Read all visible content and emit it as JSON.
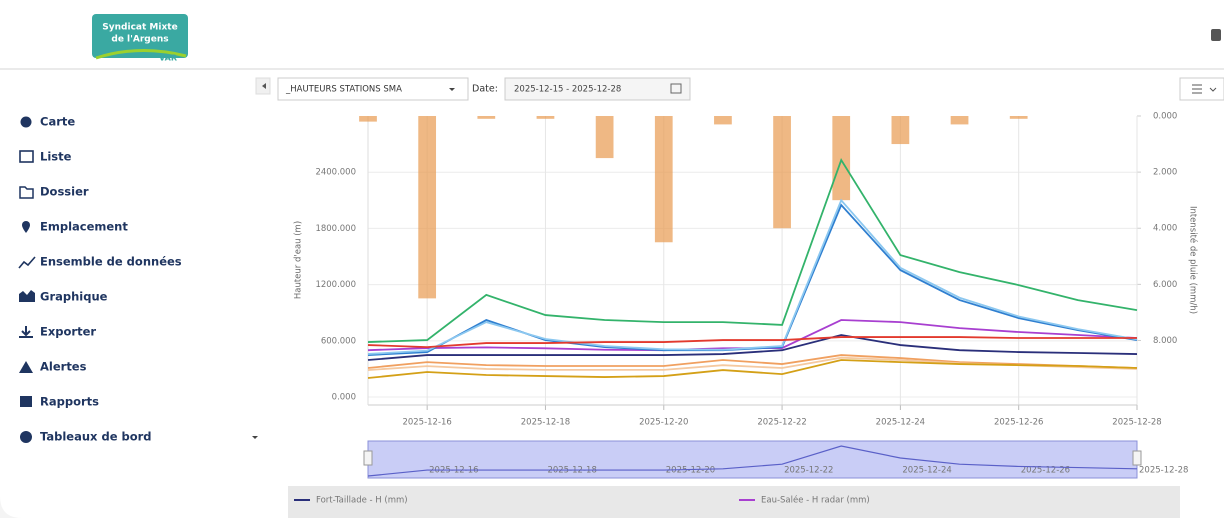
{
  "logo": {
    "line1": "Syndicat Mixte",
    "line2": "de l'Argens",
    "region": "VAR"
  },
  "sidebar": {
    "items": [
      "Carte",
      "Liste",
      "Dossier",
      "Emplacement",
      "Ensemble de données",
      "Graphique",
      "Exporter",
      "Alertes",
      "Rapports",
      "Tableaux de bord"
    ]
  },
  "toolbar": {
    "dataset": "_HAUTEURS STATIONS SMA",
    "date_label": "Date:",
    "date_range": "2025-12-15 - 2025-12-28"
  },
  "chart_data": {
    "type": "line",
    "y_label": "Hauteur d'eau (m)",
    "y2_label": "Intensité de pluie (mm/h)",
    "x": [
      "2025-12-15",
      "2025-12-16",
      "2025-12-17",
      "2025-12-18",
      "2025-12-19",
      "2025-12-20",
      "2025-12-21",
      "2025-12-22",
      "2025-12-23",
      "2025-12-24",
      "2025-12-25",
      "2025-12-26",
      "2025-12-27",
      "2025-12-28"
    ],
    "xlim": [
      "2025-12-15",
      "2025-12-28"
    ],
    "xticks": [
      "2025-12-16",
      "2025-12-18",
      "2025-12-20",
      "2025-12-22",
      "2025-12-24",
      "2025-12-26",
      "2025-12-28"
    ],
    "ylim": [
      -85,
      3000
    ],
    "yticks": [
      {
        "value": 0,
        "label": "0.000"
      },
      {
        "value": 600,
        "label": "600.000"
      },
      {
        "value": 1200,
        "label": "1200.000"
      },
      {
        "value": 1800,
        "label": "1800.000"
      },
      {
        "value": 2400,
        "label": "2400.000"
      }
    ],
    "y2lim": [
      0,
      10.3
    ],
    "y2_inverted": true,
    "y2ticks": [
      {
        "value": 0,
        "label": "0.000"
      },
      {
        "value": 2,
        "label": "2.000"
      },
      {
        "value": 4,
        "label": "4.000"
      },
      {
        "value": 6,
        "label": "6.000"
      },
      {
        "value": 8,
        "label": "8.000"
      }
    ],
    "grid": true,
    "series": [
      {
        "name": "Fort-Taillade - H (mm)",
        "color": "#2a2f7a",
        "values": [
          395,
          448,
          448,
          448,
          448,
          448,
          459,
          500,
          662,
          555,
          500,
          480,
          470,
          459
        ]
      },
      {
        "name": "Eau-Salée - H radar (mm)",
        "color": "#a83fd0",
        "values": [
          500,
          523,
          530,
          520,
          505,
          500,
          520,
          523,
          822,
          800,
          736,
          694,
          662,
          630
        ]
      },
      {
        "color": "#33b36b",
        "values": [
          587,
          608,
          1090,
          875,
          822,
          800,
          800,
          770,
          2530,
          1515,
          1334,
          1195,
          1035,
          928
        ]
      },
      {
        "color": "#2f7fd0",
        "values": [
          448,
          480,
          822,
          608,
          533,
          500,
          500,
          533,
          2050,
          1355,
          1035,
          843,
          715,
          608
        ]
      },
      {
        "color": "#8cc8f0",
        "values": [
          460,
          495,
          800,
          620,
          545,
          510,
          505,
          545,
          2100,
          1380,
          1060,
          860,
          725,
          615
        ]
      },
      {
        "color": "#e23a2e",
        "values": [
          555,
          533,
          576,
          576,
          587,
          587,
          608,
          608,
          640,
          640,
          640,
          630,
          630,
          630
        ]
      },
      {
        "color": "#f0a060",
        "values": [
          310,
          373,
          341,
          331,
          331,
          331,
          395,
          352,
          448,
          416,
          373,
          352,
          331,
          310
        ]
      },
      {
        "color": "#f5c9a0",
        "values": [
          288,
          330,
          300,
          290,
          290,
          290,
          340,
          310,
          420,
          395,
          360,
          340,
          320,
          300
        ]
      },
      {
        "color": "#d4a017",
        "values": [
          203,
          267,
          235,
          224,
          213,
          224,
          288,
          245,
          395,
          373,
          352,
          341,
          331,
          310
        ]
      },
      {
        "type": "bar",
        "axis": "y2",
        "color": "#e89a50",
        "values": [
          0.2,
          6.5,
          0.1,
          0.1,
          1.5,
          4.5,
          0.3,
          4.0,
          3.0,
          1.0,
          0.3,
          0.1,
          0,
          0
        ]
      }
    ]
  }
}
